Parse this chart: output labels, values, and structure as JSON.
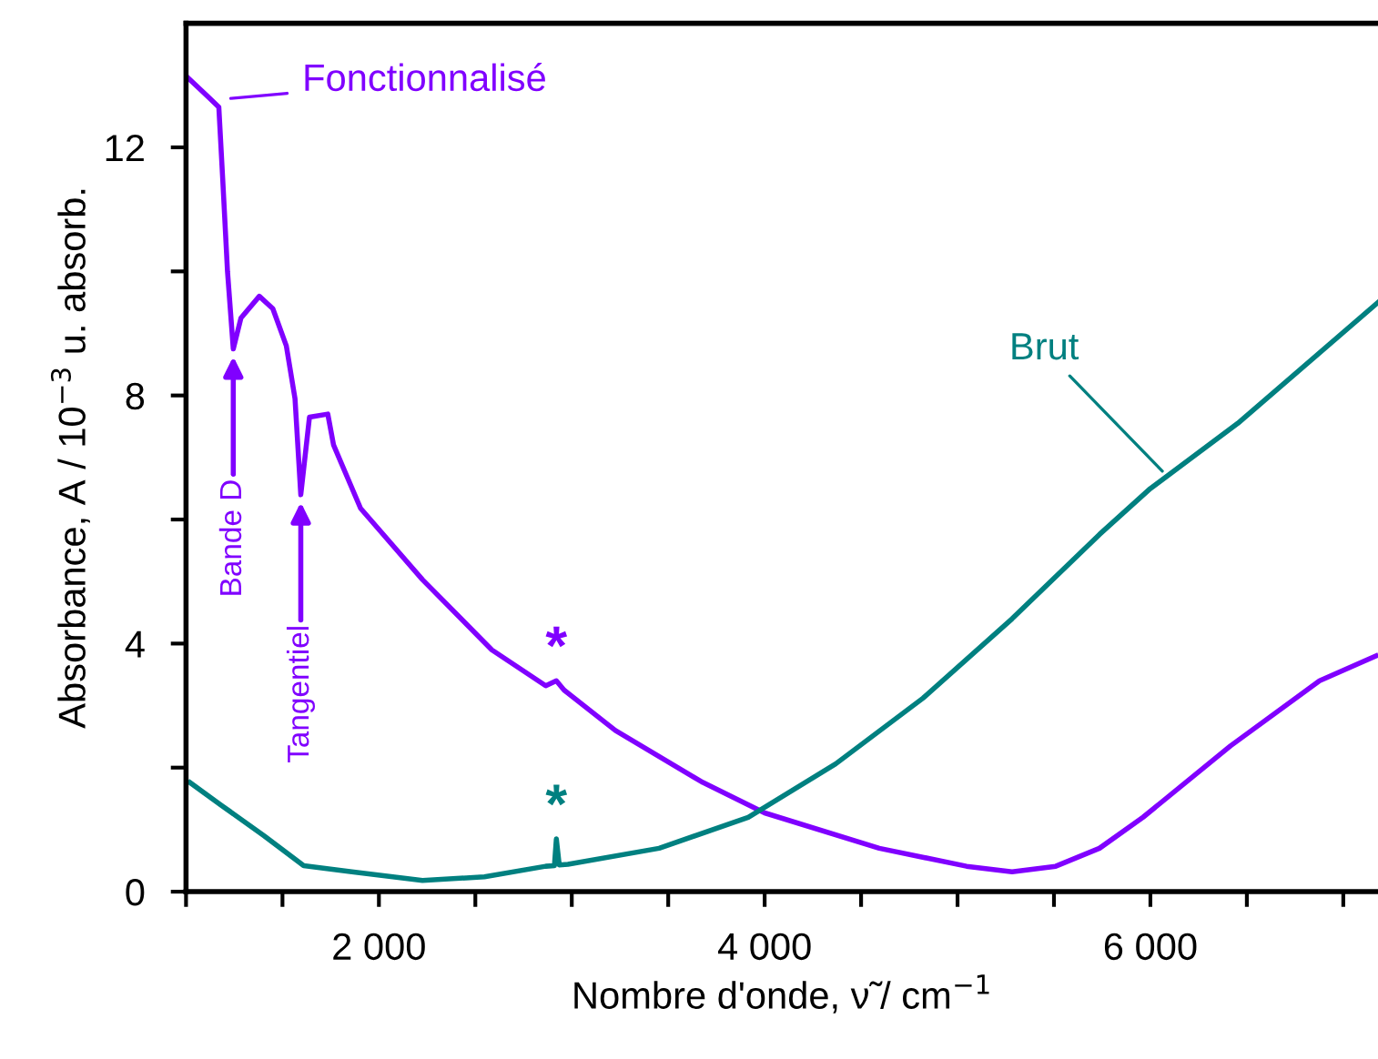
{
  "chart_data": {
    "type": "line",
    "xlabel": "Nombre d'onde, ν̃ / cm$^{−1}$",
    "ylabel": "Absorbance, A / 10$^{−3}$ u. absorb.",
    "xlim": [
      1000,
      7180
    ],
    "ylim": [
      0,
      14
    ],
    "xticks": [
      {
        "value": 1000,
        "label": null
      },
      {
        "value": 1500,
        "label": null
      },
      {
        "value": 2000,
        "label": "2 000"
      },
      {
        "value": 2500,
        "label": null
      },
      {
        "value": 3000,
        "label": null
      },
      {
        "value": 3500,
        "label": null
      },
      {
        "value": 4000,
        "label": "4 000"
      },
      {
        "value": 4500,
        "label": null
      },
      {
        "value": 5000,
        "label": null
      },
      {
        "value": 5500,
        "label": null
      },
      {
        "value": 6000,
        "label": "6 000"
      },
      {
        "value": 6500,
        "label": null
      },
      {
        "value": 7000,
        "label": null
      }
    ],
    "yticks": [
      0,
      {
        "value": 2,
        "label": null
      },
      4,
      {
        "value": 6,
        "label": null
      },
      8,
      {
        "value": 10,
        "label": null
      },
      12
    ],
    "grid": false,
    "marker": "none",
    "line_style": "solid",
    "series": [
      {
        "name": "Fonctionnalisé",
        "color": "#8000ff",
        "x": [
          1000,
          1120,
          1170,
          1190,
          1215,
          1245,
          1285,
          1380,
          1450,
          1520,
          1565,
          1595,
          1640,
          1735,
          1765,
          1905,
          2226,
          2585,
          2865,
          2920,
          2960,
          3226,
          3680,
          4000,
          4594,
          5047,
          5283,
          5509,
          5736,
          5962,
          6415,
          6877,
          7170
        ],
        "values": [
          13.15,
          12.8,
          12.65,
          11.5,
          10.0,
          8.75,
          9.25,
          9.6,
          9.4,
          8.8,
          7.95,
          6.4,
          7.65,
          7.7,
          7.2,
          6.18,
          5.03,
          3.9,
          3.32,
          3.4,
          3.25,
          2.6,
          1.76,
          1.27,
          0.7,
          0.41,
          0.32,
          0.41,
          0.7,
          1.2,
          2.35,
          3.4,
          3.8
        ]
      },
      {
        "name": "Brut",
        "color": "#008080",
        "x": [
          1020,
          1180,
          1405,
          1610,
          1860,
          2226,
          2547,
          2865,
          2910,
          2920,
          2935,
          2980,
          3453,
          3915,
          4368,
          4821,
          5283,
          5736,
          6000,
          6453,
          7180
        ],
        "values": [
          1.76,
          1.4,
          0.9,
          0.42,
          0.32,
          0.18,
          0.24,
          0.41,
          0.42,
          0.85,
          0.43,
          0.44,
          0.7,
          1.2,
          2.06,
          3.12,
          4.4,
          5.76,
          6.5,
          7.55,
          9.5
        ]
      }
    ],
    "annotations": [
      {
        "text": "Bande D",
        "x": 1245,
        "y": 8.75
      },
      {
        "text": "Tangentiel",
        "x": 1595,
        "y": 6.4
      },
      {
        "text": "*",
        "x": 2920,
        "y": 3.4
      },
      {
        "text": "*",
        "x": 2920,
        "y": 0.85
      }
    ]
  }
}
